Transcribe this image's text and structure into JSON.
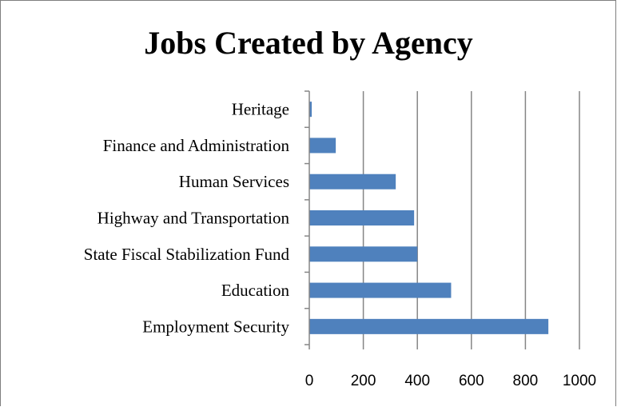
{
  "chart_data": {
    "type": "bar",
    "orientation": "horizontal",
    "title": "Jobs Created by Agency",
    "categories": [
      "Employment Security",
      "Education",
      "State Fiscal Stabilization Fund",
      "Highway and Transportation",
      "Human Services",
      "Finance and Administration",
      "Heritage"
    ],
    "values": [
      885,
      525,
      400,
      388,
      320,
      98,
      9
    ],
    "xlim": [
      0,
      1000
    ],
    "xticks": [
      "0",
      "200",
      "400",
      "600",
      "800",
      "1000"
    ],
    "grid": true,
    "bar_color": "#4f81bd",
    "grid_color": "#868686"
  }
}
